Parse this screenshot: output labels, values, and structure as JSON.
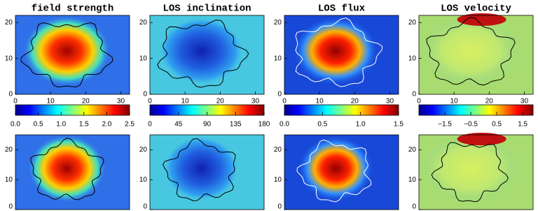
{
  "chart_data": [
    {
      "type": "image",
      "title": "field strength",
      "xlim": [
        0,
        32.5
      ],
      "ylim": [
        0,
        22
      ],
      "xticks": [
        0,
        10,
        20,
        30
      ],
      "yticks": [
        0,
        10,
        20
      ],
      "colorbar_lim": [
        0,
        2.5
      ],
      "colorbar_ticks": [
        {
          "value": 0,
          "label": "0.0"
        },
        0.5,
        {
          "value": 1,
          "label": "1.0"
        },
        1.5,
        {
          "value": 2,
          "label": "2.0"
        },
        2.5
      ],
      "lower_ylim": [
        0,
        25
      ],
      "lower_yticks": [
        0,
        10,
        20
      ]
    },
    {
      "type": "image",
      "title": "LOS inclination",
      "xlim": [
        0,
        32.5
      ],
      "ylim": [
        0,
        22
      ],
      "xticks": [
        0,
        10,
        20,
        30
      ],
      "yticks": [
        0,
        10,
        20
      ],
      "colorbar_lim": [
        0,
        180
      ],
      "colorbar_ticks": [
        0,
        45,
        90,
        135,
        180
      ],
      "lower_ylim": [
        0,
        25
      ],
      "lower_yticks": [
        0,
        10,
        20
      ]
    },
    {
      "type": "image",
      "title": "LOS flux",
      "xlim": [
        0,
        32.5
      ],
      "ylim": [
        0,
        22
      ],
      "xticks": [
        0,
        10,
        20,
        30
      ],
      "yticks": [
        0,
        10,
        20
      ],
      "colorbar_lim": [
        0,
        1.5
      ],
      "colorbar_ticks": [
        {
          "value": 0,
          "label": "0.0"
        },
        0.5,
        {
          "value": 1,
          "label": "1.0"
        },
        1.5
      ],
      "lower_ylim": [
        0,
        25
      ],
      "lower_yticks": [
        0,
        10,
        20
      ]
    },
    {
      "type": "image",
      "title": "LOS velocity",
      "xlim": [
        0,
        32.5
      ],
      "ylim": [
        0,
        22
      ],
      "xticks": [
        0,
        10,
        20,
        30
      ],
      "yticks": [
        0,
        10,
        20
      ],
      "colorbar_lim": [
        -2.5,
        1.9
      ],
      "colorbar_ticks": [
        {
          "value": -1.5,
          "label": "−1.5"
        },
        {
          "value": -0.5,
          "label": "−0.5"
        },
        0.5,
        1.5
      ],
      "lower_ylim": [
        0,
        25
      ],
      "lower_yticks": [
        0,
        10,
        20
      ]
    }
  ]
}
